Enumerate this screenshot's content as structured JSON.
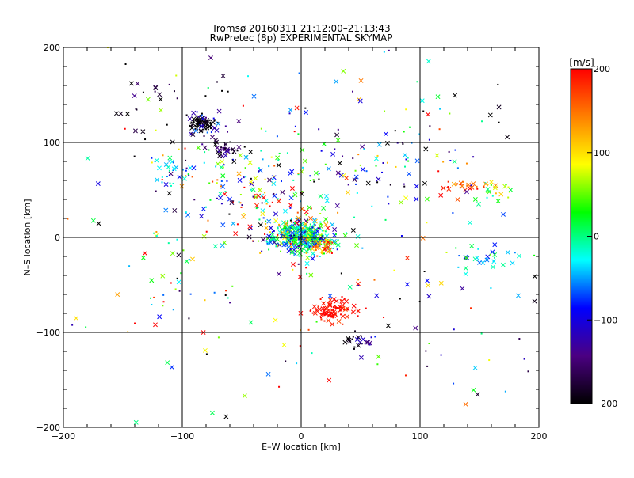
{
  "chart_data": {
    "type": "scatter",
    "title": "Tromsø 20160311 21:12:00–21:13:43",
    "subtitle": "RwPretec (8p) EXPERIMENTAL SKYMAP",
    "xlabel": "E–W location [km]",
    "ylabel": "N–S location [km]",
    "xlim": [
      -200,
      200
    ],
    "ylim": [
      -200,
      200
    ],
    "xticks": [
      -200,
      -100,
      0,
      100,
      200
    ],
    "yticks": [
      -200,
      -100,
      0,
      100,
      200
    ],
    "grid_lines": [
      -100,
      0,
      100
    ],
    "markers": [
      "x",
      "."
    ],
    "colorbar": {
      "label": "[m/s]",
      "range": [
        -200,
        200
      ],
      "ticks": [
        200,
        100,
        0,
        -100,
        -200
      ],
      "colormap": [
        "#000000",
        "#4b0082",
        "#0000ff",
        "#00ffff",
        "#00ff00",
        "#ffff00",
        "#ff8000",
        "#ff0000"
      ]
    },
    "clusters": [
      {
        "x": 0,
        "y": 0,
        "sx": 14,
        "sy": 9,
        "n": 420,
        "v": -10,
        "vs": 70
      },
      {
        "x": -83,
        "y": 120,
        "sx": 6,
        "sy": 4,
        "n": 60,
        "v": -195,
        "vs": 8
      },
      {
        "x": -75,
        "y": 118,
        "sx": 12,
        "sy": 8,
        "n": 25,
        "v": -120,
        "vs": 40
      },
      {
        "x": -65,
        "y": 92,
        "sx": 6,
        "sy": 5,
        "n": 40,
        "v": -170,
        "vs": 30
      },
      {
        "x": -110,
        "y": 70,
        "sx": 8,
        "sy": 8,
        "n": 30,
        "v": -60,
        "vs": 40
      },
      {
        "x": -60,
        "y": 60,
        "sx": 25,
        "sy": 18,
        "n": 80,
        "v": 0,
        "vs": 110
      },
      {
        "x": 25,
        "y": -77,
        "sx": 11,
        "sy": 6,
        "n": 85,
        "v": 195,
        "vs": 10
      },
      {
        "x": 45,
        "y": -108,
        "sx": 4,
        "sy": 3,
        "n": 15,
        "v": -195,
        "vs": 10
      },
      {
        "x": 55,
        "y": -110,
        "sx": 5,
        "sy": 4,
        "n": 10,
        "v": -120,
        "vs": 20
      },
      {
        "x": 20,
        "y": -10,
        "sx": 6,
        "sy": 5,
        "n": 35,
        "v": 140,
        "vs": 40
      },
      {
        "x": 140,
        "y": 55,
        "sx": 10,
        "sy": 5,
        "n": 25,
        "v": 160,
        "vs": 30
      },
      {
        "x": 165,
        "y": 50,
        "sx": 8,
        "sy": 6,
        "n": 20,
        "v": 40,
        "vs": 40
      },
      {
        "x": 160,
        "y": -22,
        "sx": 18,
        "sy": 7,
        "n": 30,
        "v": -30,
        "vs": 35
      },
      {
        "x": 50,
        "y": 75,
        "sx": 45,
        "sy": 20,
        "n": 70,
        "v": -80,
        "vs": 90
      },
      {
        "x": -20,
        "y": 30,
        "sx": 25,
        "sy": 15,
        "n": 60,
        "v": 80,
        "vs": 120
      },
      {
        "x": -110,
        "y": -50,
        "sx": 12,
        "sy": 25,
        "n": 18,
        "v": 80,
        "vs": 140
      },
      {
        "x": 0,
        "y": 0,
        "sx": 110,
        "sy": 90,
        "n": 260,
        "v": 0,
        "vs": 140
      },
      {
        "x": -120,
        "y": 150,
        "sx": 30,
        "sy": 25,
        "n": 25,
        "v": -180,
        "vs": 30
      },
      {
        "x": 140,
        "y": -130,
        "sx": 40,
        "sy": 40,
        "n": 15,
        "v": -160,
        "vs": 50
      },
      {
        "x": 100,
        "y": 130,
        "sx": 60,
        "sy": 25,
        "n": 25,
        "v": -100,
        "vs": 110
      }
    ]
  }
}
